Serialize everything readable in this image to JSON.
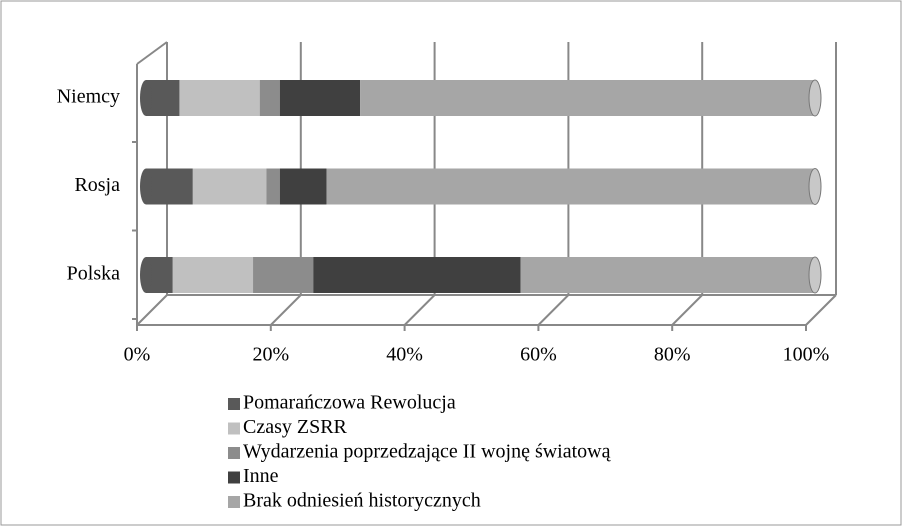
{
  "chart_data": {
    "type": "bar",
    "orientation": "horizontal",
    "stacked": true,
    "categories": [
      "Polska",
      "Rosja",
      "Niemcy"
    ],
    "series": [
      {
        "name": "Pomarańczowa Rewolucja",
        "color": "#595959",
        "values": [
          4,
          7,
          5
        ]
      },
      {
        "name": "Czasy ZSRR",
        "color": "#c0c0c0",
        "values": [
          12,
          11,
          12
        ]
      },
      {
        "name": "Wydarzenia poprzedzające II wojnę światową",
        "color": "#8c8c8c",
        "values": [
          9,
          2,
          3
        ]
      },
      {
        "name": "Inne",
        "color": "#404040",
        "values": [
          31,
          7,
          12
        ]
      },
      {
        "name": "Brak odniesień historycznych",
        "color": "#a6a6a6",
        "values": [
          44,
          73,
          68
        ]
      }
    ],
    "xlim": [
      0,
      100
    ],
    "xticks": [
      {
        "value": 0,
        "label": "0%"
      },
      {
        "value": 20,
        "label": "20%"
      },
      {
        "value": 40,
        "label": "40%"
      },
      {
        "value": 60,
        "label": "60%"
      },
      {
        "value": 80,
        "label": "80%"
      },
      {
        "value": 100,
        "label": "100%"
      }
    ],
    "grid": true,
    "legend": "bottom"
  }
}
